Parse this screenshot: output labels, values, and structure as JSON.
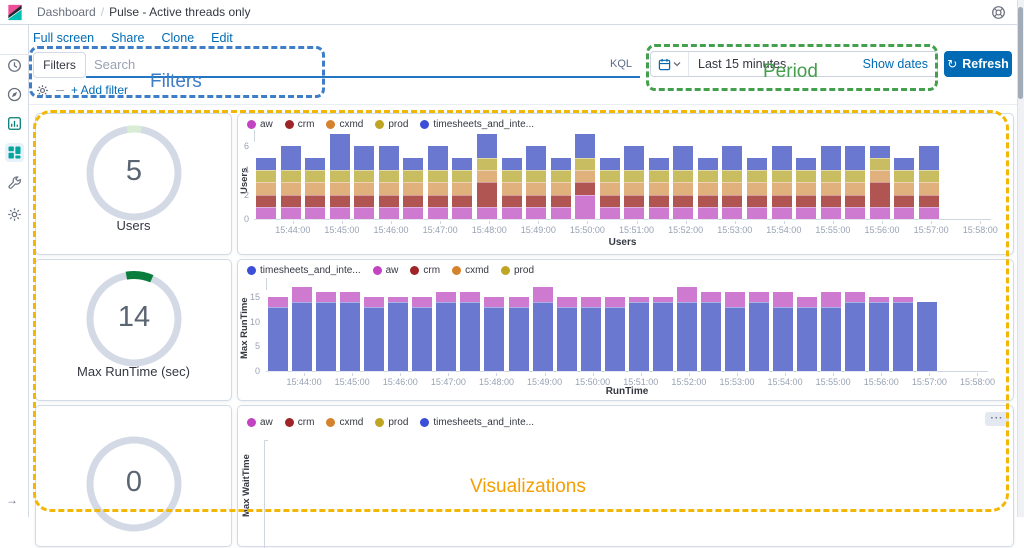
{
  "navbar": {
    "breadcrumb": {
      "section": "Dashboard",
      "separator": "/",
      "current": "Pulse - Active threads only"
    }
  },
  "sidebar": {
    "icons": [
      "recent-clock",
      "discover-compass",
      "visualize-chart",
      "dashboard-grid",
      "dev-tools-wrench",
      "management-gear"
    ],
    "active_icon": "dashboard-grid",
    "collapse_arrow": "→"
  },
  "toolbar": {
    "links": [
      "Full screen",
      "Share",
      "Clone",
      "Edit"
    ]
  },
  "query_bar": {
    "filters_button": "Filters",
    "search_placeholder": "Search",
    "language_label": "KQL"
  },
  "filter_row": {
    "add_filter_label": "+ Add filter"
  },
  "time_picker": {
    "value": "Last 15 minutes",
    "show_dates_label": "Show dates",
    "refresh_label": "Refresh",
    "refresh_icon": "↻"
  },
  "annotations": {
    "filters": {
      "label": "Filters",
      "color": "#3e7dc8"
    },
    "period": {
      "label": "Period",
      "color": "#44a04d"
    },
    "visualizations": {
      "label": "Visualizations",
      "border_color": "#f2b705",
      "label_color": "#f59e00"
    }
  },
  "gauges": [
    {
      "value": "5",
      "label": "Users",
      "arc_color": "#d9edd5"
    },
    {
      "value": "14",
      "label": "Max RunTime (sec)",
      "arc_color": "#0a7d3c"
    },
    {
      "value": "0"
    }
  ],
  "panel_menu_icon": "···",
  "series_colors": {
    "legend": {
      "aw": "#c244c2",
      "crm": "#9e2428",
      "cxmd": "#d4822b",
      "prod": "#bfa524",
      "timesheets_and_inte...": "#3b4ed8"
    },
    "bars": {
      "aw": "#ce7ad0",
      "crm": "#b05551",
      "cxmd": "#e0b17d",
      "prod": "#c9bd62",
      "timesheets_and_inte...": "#6b78cf"
    }
  },
  "chart_data": [
    {
      "type": "bar",
      "stacked": true,
      "legend": [
        "aw",
        "crm",
        "cxmd",
        "prod",
        "timesheets_and_inte..."
      ],
      "ylabel": "Users",
      "xlabel": "Users",
      "yticks": [
        0,
        2,
        4,
        6
      ],
      "ylim": [
        0,
        7
      ],
      "x_interval_seconds": 30,
      "x": [
        "15:43:30",
        "15:44:00",
        "15:44:30",
        "15:45:00",
        "15:45:30",
        "15:46:00",
        "15:46:30",
        "15:47:00",
        "15:47:30",
        "15:48:00",
        "15:48:30",
        "15:49:00",
        "15:49:30",
        "15:50:00",
        "15:50:30",
        "15:51:00",
        "15:51:30",
        "15:52:00",
        "15:52:30",
        "15:53:00",
        "15:53:30",
        "15:54:00",
        "15:54:30",
        "15:55:00",
        "15:55:30",
        "15:56:00",
        "15:56:30",
        "15:57:00"
      ],
      "x_tick_labels": [
        "15:44:00",
        "15:45:00",
        "15:46:00",
        "15:47:00",
        "15:48:00",
        "15:49:00",
        "15:50:00",
        "15:51:00",
        "15:52:00",
        "15:53:00",
        "15:54:00",
        "15:55:00",
        "15:56:00",
        "15:57:00",
        "15:58:00"
      ],
      "series": [
        {
          "name": "aw",
          "values": [
            1,
            1,
            1,
            1,
            1,
            1,
            1,
            1,
            1,
            1,
            1,
            1,
            1,
            2,
            1,
            1,
            1,
            1,
            1,
            1,
            1,
            1,
            1,
            1,
            1,
            1,
            1,
            1
          ]
        },
        {
          "name": "crm",
          "values": [
            1,
            1,
            1,
            1,
            1,
            1,
            1,
            1,
            1,
            2,
            1,
            1,
            1,
            1,
            1,
            1,
            1,
            1,
            1,
            1,
            1,
            1,
            1,
            1,
            1,
            2,
            1,
            1
          ]
        },
        {
          "name": "cxmd",
          "values": [
            1,
            1,
            1,
            1,
            1,
            1,
            1,
            1,
            1,
            1,
            1,
            1,
            1,
            1,
            1,
            1,
            1,
            1,
            1,
            1,
            1,
            1,
            1,
            1,
            1,
            1,
            1,
            1
          ]
        },
        {
          "name": "prod",
          "values": [
            1,
            1,
            1,
            1,
            1,
            1,
            1,
            1,
            1,
            1,
            1,
            1,
            1,
            1,
            1,
            1,
            1,
            1,
            1,
            1,
            1,
            1,
            1,
            1,
            1,
            1,
            1,
            1
          ]
        },
        {
          "name": "timesheets_and_inte...",
          "values": [
            1,
            2,
            1,
            3,
            2,
            2,
            1,
            2,
            1,
            2,
            1,
            2,
            1,
            2,
            1,
            2,
            1,
            2,
            1,
            2,
            1,
            2,
            1,
            2,
            2,
            1,
            1,
            2
          ]
        }
      ]
    },
    {
      "type": "bar",
      "stacked": true,
      "legend": [
        "timesheets_and_inte...",
        "aw",
        "crm",
        "cxmd",
        "prod"
      ],
      "ylabel": "Max RunTime",
      "xlabel": "RunTime",
      "yticks": [
        0,
        5,
        10,
        15
      ],
      "ylim": [
        0,
        17
      ],
      "x_interval_seconds": 30,
      "x": [
        "15:43:30",
        "15:44:00",
        "15:44:30",
        "15:45:00",
        "15:45:30",
        "15:46:00",
        "15:46:30",
        "15:47:00",
        "15:47:30",
        "15:48:00",
        "15:48:30",
        "15:49:00",
        "15:49:30",
        "15:50:00",
        "15:50:30",
        "15:51:00",
        "15:51:30",
        "15:52:00",
        "15:52:30",
        "15:53:00",
        "15:53:30",
        "15:54:00",
        "15:54:30",
        "15:55:00",
        "15:55:30",
        "15:56:00",
        "15:56:30",
        "15:57:00"
      ],
      "x_tick_labels": [
        "15:44:00",
        "15:45:00",
        "15:46:00",
        "15:47:00",
        "15:48:00",
        "15:49:00",
        "15:50:00",
        "15:51:00",
        "15:52:00",
        "15:53:00",
        "15:54:00",
        "15:55:00",
        "15:56:00",
        "15:57:00",
        "15:58:00"
      ],
      "series": [
        {
          "name": "timesheets_and_inte...",
          "values": [
            13,
            14,
            14,
            14,
            13,
            14,
            13,
            14,
            14,
            13,
            13,
            14,
            13,
            13,
            13,
            14,
            14,
            14,
            14,
            13,
            14,
            13,
            13,
            13,
            14,
            14,
            14,
            14
          ]
        },
        {
          "name": "aw",
          "values": [
            2,
            3,
            2,
            2,
            2,
            1,
            2,
            2,
            2,
            2,
            2,
            3,
            2,
            2,
            2,
            1,
            1,
            3,
            2,
            3,
            2,
            3,
            2,
            3,
            2,
            1,
            1,
            0
          ]
        }
      ]
    },
    {
      "type": "bar",
      "stacked": true,
      "legend": [
        "aw",
        "crm",
        "cxmd",
        "prod",
        "timesheets_and_inte..."
      ],
      "ylabel": "Max WaitTime",
      "series": []
    }
  ]
}
